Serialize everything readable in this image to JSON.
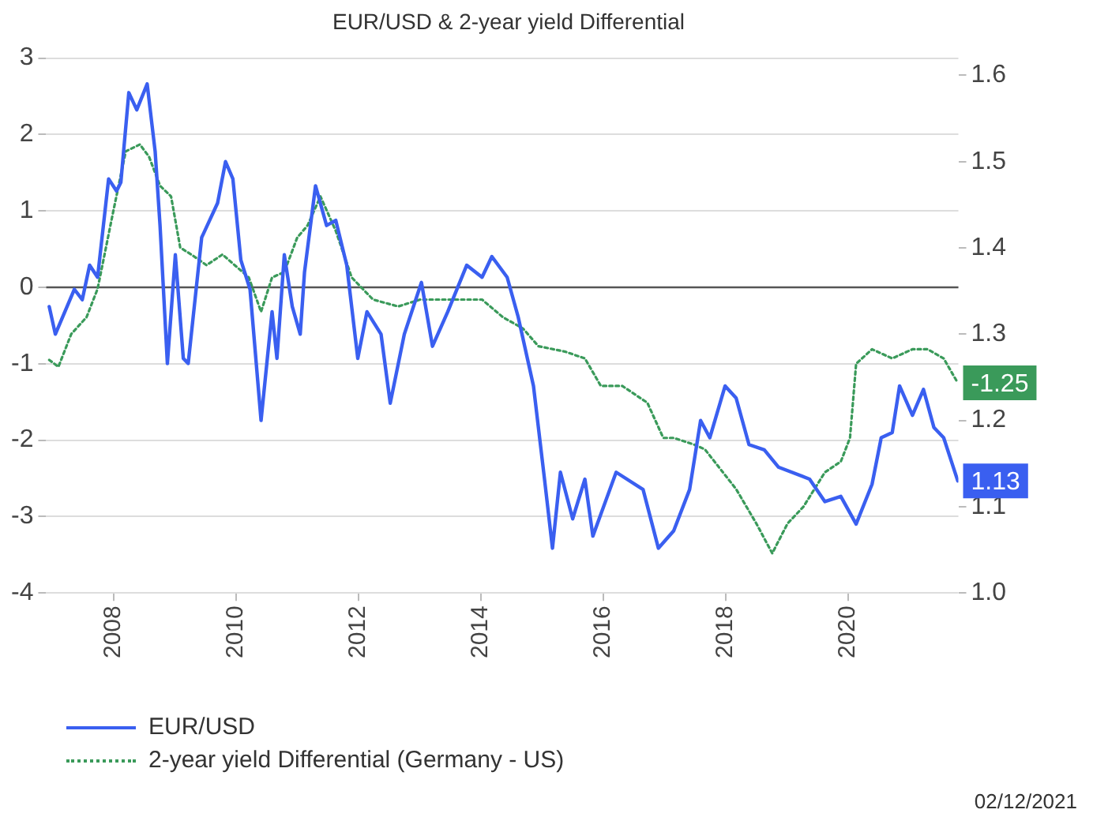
{
  "chart_data": {
    "type": "line",
    "title": "EUR/USD & 2-year yield Differential",
    "xlim": [
      2006.9,
      2021.8
    ],
    "xticks": [
      2008,
      2010,
      2012,
      2014,
      2016,
      2018,
      2020
    ],
    "ylim": [
      -4,
      3
    ],
    "yticks": [
      -4,
      -3,
      -2,
      -1,
      0,
      1,
      2,
      3
    ],
    "y2lim": [
      1.0,
      1.62
    ],
    "y2ticks": [
      {
        "value": 1.0,
        "label": "1.0"
      },
      1.1,
      1.2,
      1.3,
      1.4,
      1.5,
      1.6
    ],
    "grid": "y",
    "legend": "bottom left",
    "ref_lines": [
      {
        "axis": "y",
        "value": 0,
        "color": "#555555"
      }
    ],
    "annotations": [
      "02/12/2021"
    ],
    "series": [
      {
        "name": "EUR/USD",
        "color": "#3a5ff0",
        "axis": "y2",
        "line_style": "solid",
        "x": [
          2006.95,
          2007.05,
          2007.36,
          2007.49,
          2007.61,
          2007.74,
          2007.92,
          2008.05,
          2008.12,
          2008.25,
          2008.38,
          2008.55,
          2008.68,
          2008.76,
          2008.88,
          2009.01,
          2009.14,
          2009.22,
          2009.44,
          2009.7,
          2009.83,
          2009.95,
          2010.08,
          2010.23,
          2010.41,
          2010.59,
          2010.67,
          2010.79,
          2010.92,
          2011.05,
          2011.12,
          2011.3,
          2011.48,
          2011.63,
          2011.81,
          2011.99,
          2012.14,
          2012.37,
          2012.52,
          2012.75,
          2013.03,
          2013.21,
          2013.46,
          2013.77,
          2014.02,
          2014.18,
          2014.43,
          2014.61,
          2014.86,
          2015.04,
          2015.17,
          2015.3,
          2015.5,
          2015.7,
          2015.83,
          2016.21,
          2016.65,
          2016.9,
          2017.15,
          2017.41,
          2017.59,
          2017.74,
          2017.99,
          2018.17,
          2018.38,
          2018.63,
          2018.86,
          2019.37,
          2019.62,
          2019.88,
          2020.13,
          2020.39,
          2020.54,
          2020.72,
          2020.84,
          2021.05,
          2021.23,
          2021.4,
          2021.56,
          2021.79
        ],
        "values": [
          1.332,
          1.3,
          1.352,
          1.34,
          1.38,
          1.366,
          1.48,
          1.466,
          1.476,
          1.58,
          1.56,
          1.59,
          1.512,
          1.426,
          1.266,
          1.392,
          1.272,
          1.266,
          1.412,
          1.452,
          1.5,
          1.48,
          1.386,
          1.352,
          1.2,
          1.326,
          1.272,
          1.392,
          1.332,
          1.3,
          1.372,
          1.472,
          1.426,
          1.432,
          1.38,
          1.272,
          1.326,
          1.3,
          1.22,
          1.3,
          1.36,
          1.286,
          1.326,
          1.38,
          1.366,
          1.39,
          1.366,
          1.32,
          1.24,
          1.132,
          1.052,
          1.14,
          1.086,
          1.132,
          1.066,
          1.14,
          1.12,
          1.052,
          1.072,
          1.12,
          1.2,
          1.18,
          1.24,
          1.226,
          1.172,
          1.166,
          1.146,
          1.132,
          1.106,
          1.112,
          1.08,
          1.126,
          1.18,
          1.186,
          1.24,
          1.206,
          1.236,
          1.192,
          1.18,
          1.13
        ],
        "value_labels": [
          null,
          null,
          null,
          null,
          null,
          null,
          null,
          null,
          null,
          null,
          null,
          null,
          null,
          null,
          null,
          null,
          null,
          null,
          null,
          null,
          null,
          null,
          null,
          null,
          null,
          null,
          null,
          null,
          null,
          null,
          null,
          null,
          null,
          null,
          null,
          null,
          null,
          null,
          null,
          null,
          null,
          null,
          null,
          null,
          null,
          null,
          null,
          null,
          null,
          null,
          null,
          null,
          null,
          null,
          null,
          null,
          null,
          null,
          null,
          null,
          null,
          null,
          null,
          null,
          null,
          null,
          null,
          null,
          null,
          null,
          null,
          null,
          null,
          null,
          null,
          null,
          null,
          null,
          null,
          "1.13"
        ]
      },
      {
        "name": "2-year yield Differential (Germany - US)",
        "color": "#3a9a5a",
        "line_style": "dotted",
        "x": [
          2006.95,
          2007.1,
          2007.31,
          2007.56,
          2007.74,
          2007.99,
          2008.2,
          2008.43,
          2008.58,
          2008.76,
          2008.94,
          2009.09,
          2009.27,
          2009.52,
          2009.78,
          2009.98,
          2010.21,
          2010.41,
          2010.59,
          2010.79,
          2011.0,
          2011.17,
          2011.38,
          2011.63,
          2011.89,
          2012.07,
          2012.24,
          2012.65,
          2013.01,
          2013.52,
          2014.02,
          2014.36,
          2014.69,
          2014.94,
          2015.37,
          2015.7,
          2015.96,
          2016.31,
          2016.72,
          2016.98,
          2017.15,
          2017.49,
          2017.66,
          2018.17,
          2018.5,
          2018.76,
          2019.01,
          2019.27,
          2019.62,
          2019.88,
          2020.03,
          2020.13,
          2020.39,
          2020.72,
          2021.05,
          2021.3,
          2021.56,
          2021.79
        ],
        "values": [
          -0.95,
          -1.04,
          -0.61,
          -0.39,
          -0.02,
          0.97,
          1.78,
          1.87,
          1.71,
          1.33,
          1.19,
          0.52,
          0.43,
          0.29,
          0.43,
          0.29,
          0.13,
          -0.32,
          0.13,
          0.2,
          0.65,
          0.81,
          1.19,
          0.74,
          0.13,
          -0.02,
          -0.16,
          -0.25,
          -0.16,
          -0.16,
          -0.16,
          -0.39,
          -0.54,
          -0.77,
          -0.84,
          -0.93,
          -1.29,
          -1.29,
          -1.51,
          -1.97,
          -1.97,
          -2.06,
          -2.12,
          -2.64,
          -3.09,
          -3.48,
          -3.09,
          -2.87,
          -2.42,
          -2.28,
          -1.97,
          -1.0,
          -0.81,
          -0.93,
          -0.81,
          -0.81,
          -0.93,
          -1.25
        ],
        "value_labels": [
          null,
          null,
          null,
          null,
          null,
          null,
          null,
          null,
          null,
          null,
          null,
          null,
          null,
          null,
          null,
          null,
          null,
          null,
          null,
          null,
          null,
          null,
          null,
          null,
          null,
          null,
          null,
          null,
          null,
          null,
          null,
          null,
          null,
          null,
          null,
          null,
          null,
          null,
          null,
          null,
          null,
          null,
          null,
          null,
          null,
          null,
          null,
          null,
          null,
          null,
          null,
          null,
          null,
          null,
          null,
          null,
          null,
          "-1.25"
        ]
      }
    ]
  }
}
